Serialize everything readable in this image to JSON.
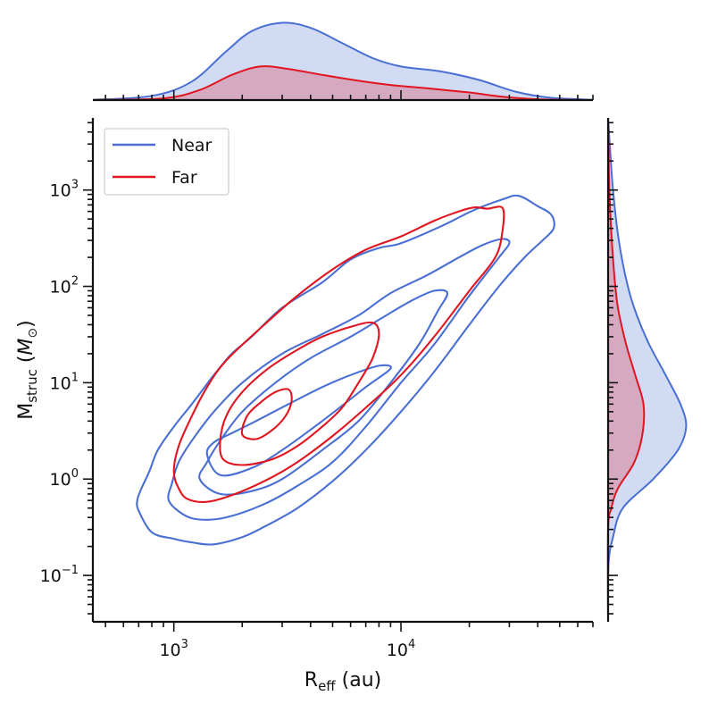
{
  "chart_data": {
    "type": "joint-kde",
    "xlabel_main": "R",
    "xlabel_sub": "eff",
    "xlabel_unit": " (au)",
    "ylabel_main": "M",
    "ylabel_sub": "struc",
    "ylabel_unit_open": " (",
    "ylabel_unit_sym": "M",
    "ylabel_unit_sun": "⊙",
    "ylabel_unit_close": ")",
    "x_scale": "log",
    "y_scale": "log",
    "xlim": [
      440,
      70000
    ],
    "ylim": [
      0.033,
      5600
    ],
    "x_ticks": [
      {
        "value": 1000,
        "base": "10",
        "exp": "3"
      },
      {
        "value": 10000,
        "base": "10",
        "exp": "4"
      }
    ],
    "y_ticks": [
      {
        "value": 0.1,
        "base": "10",
        "exp": "−1"
      },
      {
        "value": 1,
        "base": "10",
        "exp": "0"
      },
      {
        "value": 10,
        "base": "10",
        "exp": "1"
      },
      {
        "value": 100,
        "base": "10",
        "exp": "2"
      },
      {
        "value": 1000,
        "base": "10",
        "exp": "3"
      }
    ],
    "legend": {
      "position": "upper-left",
      "entries": [
        {
          "label": "Near",
          "color": "#4a6fd4"
        },
        {
          "label": "Far",
          "color": "#e0151f"
        }
      ]
    },
    "series": [
      {
        "name": "Near",
        "color": "#4a6fd4",
        "fill": "rgba(74,111,212,0.25)",
        "contours": [
          [
            [
              700,
              0.47
            ],
            [
              800,
              0.28
            ],
            [
              1000,
              0.24
            ],
            [
              1200,
              0.22
            ],
            [
              1500,
              0.21
            ],
            [
              2000,
              0.25
            ],
            [
              2500,
              0.32
            ],
            [
              3500,
              0.5
            ],
            [
              5000,
              0.95
            ],
            [
              7000,
              2
            ],
            [
              10000,
              5
            ],
            [
              14000,
              13
            ],
            [
              20000,
              40
            ],
            [
              27000,
              100
            ],
            [
              35000,
              200
            ],
            [
              42000,
              300
            ],
            [
              47000,
              400
            ],
            [
              46000,
              550
            ],
            [
              40000,
              680
            ],
            [
              33000,
              870
            ],
            [
              28000,
              800
            ],
            [
              21000,
              620
            ],
            [
              15000,
              420
            ],
            [
              10000,
              280
            ],
            [
              8000,
              250
            ],
            [
              6000,
              190
            ],
            [
              4500,
              110
            ],
            [
              3000,
              60
            ],
            [
              2200,
              30
            ],
            [
              1800,
              20
            ],
            [
              1500,
              12
            ],
            [
              1200,
              6
            ],
            [
              1000,
              3.5
            ],
            [
              850,
              2
            ],
            [
              780,
              1.2
            ],
            [
              720,
              0.8
            ],
            [
              690,
              0.6
            ]
          ],
          [
            [
              950,
              0.6
            ],
            [
              1100,
              0.43
            ],
            [
              1300,
              0.38
            ],
            [
              1700,
              0.4
            ],
            [
              2500,
              0.55
            ],
            [
              3500,
              0.85
            ],
            [
              5000,
              1.5
            ],
            [
              7000,
              3.5
            ],
            [
              10000,
              10
            ],
            [
              14000,
              25
            ],
            [
              20000,
              80
            ],
            [
              27000,
              200
            ],
            [
              30000,
              280
            ],
            [
              28000,
              310
            ],
            [
              23000,
              270
            ],
            [
              18000,
              200
            ],
            [
              13000,
              130
            ],
            [
              9000,
              85
            ],
            [
              6500,
              50
            ],
            [
              4500,
              32
            ],
            [
              3000,
              20
            ],
            [
              2000,
              10
            ],
            [
              1500,
              5
            ],
            [
              1200,
              2.5
            ],
            [
              1050,
              1.5
            ],
            [
              980,
              0.9
            ]
          ],
          [
            [
              1300,
              1.0
            ],
            [
              1600,
              0.7
            ],
            [
              2200,
              0.75
            ],
            [
              3000,
              1.0
            ],
            [
              4500,
              2.0
            ],
            [
              6500,
              4
            ],
            [
              9000,
              10
            ],
            [
              12000,
              25
            ],
            [
              14500,
              55
            ],
            [
              16000,
              85
            ],
            [
              14000,
              90
            ],
            [
              11000,
              70
            ],
            [
              8000,
              45
            ],
            [
              6000,
              30
            ],
            [
              4000,
              18
            ],
            [
              2800,
              10
            ],
            [
              2000,
              5
            ],
            [
              1600,
              2.5
            ],
            [
              1400,
              1.5
            ]
          ],
          [
            [
              1400,
              1.8
            ],
            [
              1600,
              1.1
            ],
            [
              2200,
              1.3
            ],
            [
              3000,
              2
            ],
            [
              4500,
              4
            ],
            [
              7000,
              9
            ],
            [
              9000,
              14
            ],
            [
              8000,
              15
            ],
            [
              6000,
              12
            ],
            [
              4500,
              9
            ],
            [
              3200,
              6
            ],
            [
              2300,
              4
            ],
            [
              1800,
              3
            ],
            [
              1500,
              2.4
            ]
          ]
        ],
        "marginal_x": [
          [
            440,
            0.002
          ],
          [
            800,
            0.05
          ],
          [
            1200,
            0.22
          ],
          [
            1700,
            0.58
          ],
          [
            2200,
            0.82
          ],
          [
            3000,
            0.92
          ],
          [
            4000,
            0.86
          ],
          [
            5500,
            0.68
          ],
          [
            7500,
            0.5
          ],
          [
            10000,
            0.4
          ],
          [
            15000,
            0.34
          ],
          [
            22000,
            0.24
          ],
          [
            32000,
            0.1
          ],
          [
            45000,
            0.03
          ],
          [
            70000,
            0.003
          ]
        ],
        "marginal_y": [
          [
            0.033,
            0.0
          ],
          [
            0.13,
            0.005
          ],
          [
            0.25,
            0.06
          ],
          [
            0.5,
            0.18
          ],
          [
            1,
            0.55
          ],
          [
            2,
            0.85
          ],
          [
            3.5,
            0.95
          ],
          [
            6,
            0.88
          ],
          [
            12,
            0.7
          ],
          [
            25,
            0.5
          ],
          [
            50,
            0.35
          ],
          [
            100,
            0.24
          ],
          [
            300,
            0.13
          ],
          [
            1000,
            0.06
          ],
          [
            3000,
            0.02
          ],
          [
            5600,
            0.0
          ]
        ]
      },
      {
        "name": "Far",
        "color": "#e0151f",
        "fill": "rgba(224,21,31,0.25)",
        "contours": [
          [
            [
              1150,
              0.62
            ],
            [
              1400,
              0.58
            ],
            [
              1800,
              0.68
            ],
            [
              2500,
              0.95
            ],
            [
              3500,
              1.5
            ],
            [
              5000,
              2.8
            ],
            [
              7000,
              5.5
            ],
            [
              10000,
              12
            ],
            [
              14000,
              30
            ],
            [
              20000,
              90
            ],
            [
              26000,
              200
            ],
            [
              28000,
              380
            ],
            [
              28000,
              650
            ],
            [
              24000,
              640
            ],
            [
              21000,
              660
            ],
            [
              18000,
              600
            ],
            [
              14000,
              480
            ],
            [
              10000,
              330
            ],
            [
              7000,
              240
            ],
            [
              5000,
              150
            ],
            [
              3500,
              80
            ],
            [
              2500,
              40
            ],
            [
              1700,
              17
            ],
            [
              1400,
              9
            ],
            [
              1200,
              4.5
            ],
            [
              1050,
              2.2
            ],
            [
              1000,
              1.2
            ],
            [
              1050,
              0.8
            ]
          ],
          [
            [
              1650,
              1.6
            ],
            [
              2000,
              1.4
            ],
            [
              2700,
              1.6
            ],
            [
              3500,
              2.2
            ],
            [
              4500,
              3.5
            ],
            [
              5500,
              5.5
            ],
            [
              6500,
              10
            ],
            [
              7500,
              18
            ],
            [
              8000,
              32
            ],
            [
              7500,
              42
            ],
            [
              6000,
              38
            ],
            [
              4500,
              30
            ],
            [
              3500,
              22
            ],
            [
              2600,
              14
            ],
            [
              2000,
              8
            ],
            [
              1700,
              4.5
            ],
            [
              1600,
              2.5
            ]
          ],
          [
            [
              2000,
              2.9
            ],
            [
              2300,
              2.6
            ],
            [
              2700,
              3.2
            ],
            [
              3100,
              4.5
            ],
            [
              3300,
              6.5
            ],
            [
              3200,
              8.5
            ],
            [
              2800,
              8
            ],
            [
              2400,
              6.2
            ],
            [
              2100,
              4.5
            ]
          ]
        ],
        "marginal_x": [
          [
            440,
            0.0005
          ],
          [
            900,
            0.02
          ],
          [
            1300,
            0.12
          ],
          [
            1800,
            0.3
          ],
          [
            2400,
            0.4
          ],
          [
            3200,
            0.37
          ],
          [
            4500,
            0.3
          ],
          [
            6500,
            0.23
          ],
          [
            9000,
            0.18
          ],
          [
            13000,
            0.14
          ],
          [
            20000,
            0.09
          ],
          [
            28000,
            0.04
          ],
          [
            40000,
            0.01
          ],
          [
            70000,
            0.0005
          ]
        ],
        "marginal_y": [
          [
            0.033,
            0.0
          ],
          [
            0.3,
            0.0
          ],
          [
            0.5,
            0.04
          ],
          [
            0.8,
            0.12
          ],
          [
            1.5,
            0.32
          ],
          [
            3,
            0.42
          ],
          [
            6,
            0.43
          ],
          [
            12,
            0.33
          ],
          [
            25,
            0.22
          ],
          [
            60,
            0.12
          ],
          [
            150,
            0.07
          ],
          [
            500,
            0.03
          ],
          [
            1500,
            0.01
          ],
          [
            5600,
            0.0
          ]
        ]
      }
    ]
  }
}
